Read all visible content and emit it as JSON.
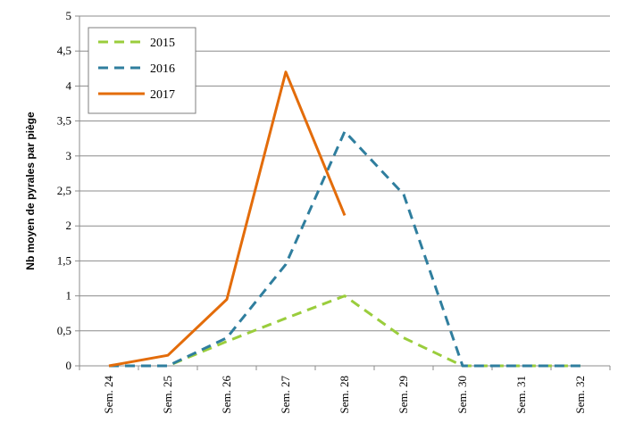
{
  "chart_data": {
    "type": "line",
    "title": "",
    "xlabel": "",
    "ylabel": "Nb moyen de pyrales par piège",
    "categories": [
      "Sem. 24",
      "Sem. 25",
      "Sem. 26",
      "Sem. 27",
      "Sem. 28",
      "Sem. 29",
      "Sem. 30",
      "Sem. 31",
      "Sem. 32"
    ],
    "ylim": [
      0,
      5
    ],
    "yticks": [
      0,
      0.5,
      1,
      1.5,
      2,
      2.5,
      3,
      3.5,
      4,
      4.5,
      5
    ],
    "ytick_labels": [
      "0",
      "0,5",
      "1",
      "1,5",
      "2",
      "2,5",
      "3",
      "3,5",
      "4",
      "4,5",
      "5"
    ],
    "grid": true,
    "legend_position": "top-left",
    "series": [
      {
        "name": "2015",
        "color": "#9acd3c",
        "dashed": true,
        "values": [
          0,
          0,
          0.35,
          0.68,
          1.0,
          0.4,
          0,
          0,
          0
        ]
      },
      {
        "name": "2016",
        "color": "#2f7e9e",
        "dashed": true,
        "values": [
          0,
          0,
          0.4,
          1.45,
          3.35,
          2.45,
          0,
          0,
          0
        ]
      },
      {
        "name": "2017",
        "color": "#e36c0a",
        "dashed": false,
        "values": [
          0,
          0.15,
          0.95,
          4.2,
          2.15,
          null,
          null,
          null,
          null
        ]
      }
    ]
  }
}
